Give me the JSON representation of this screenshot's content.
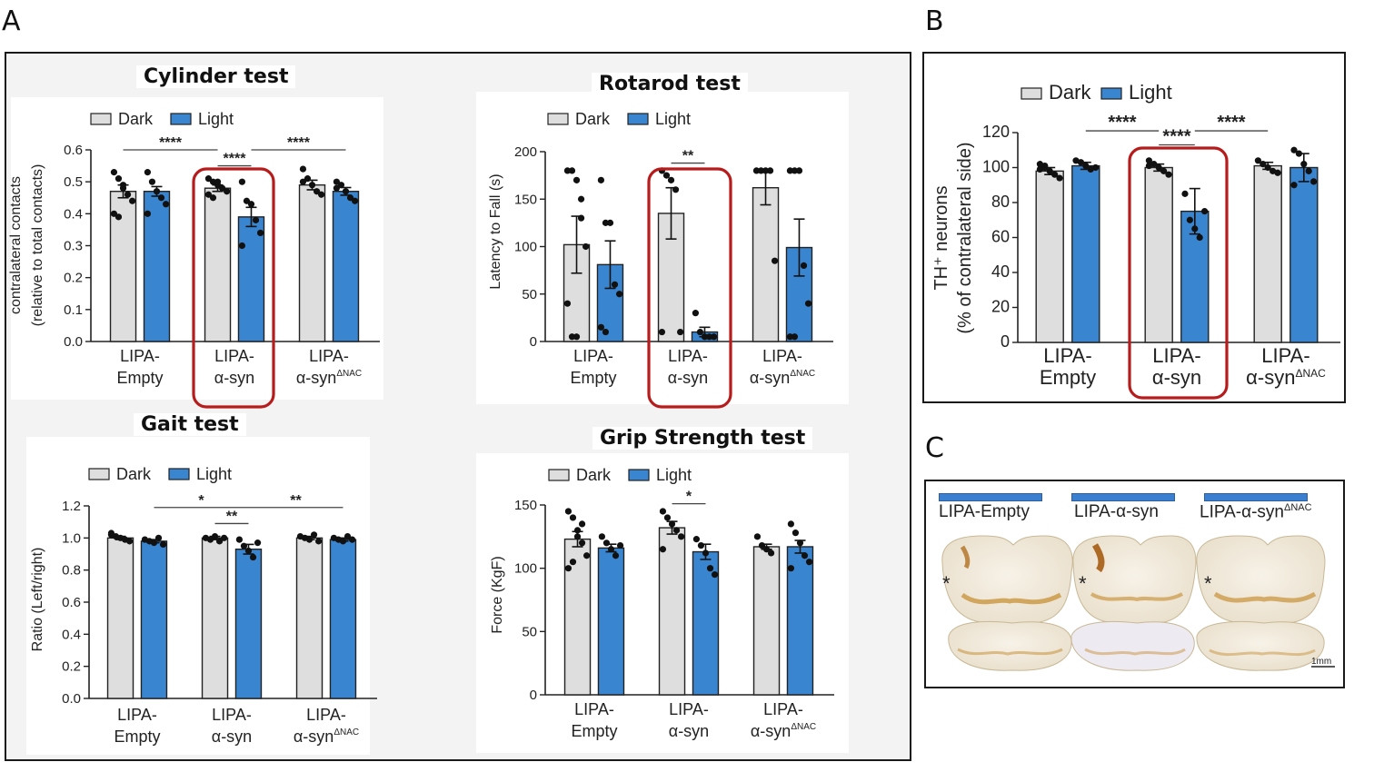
{
  "panel_letters": {
    "a": "A",
    "b": "B",
    "c": "C"
  },
  "legend": {
    "dark": "Dark",
    "light": "Light"
  },
  "colors": {
    "dark": "#dedede",
    "light": "#3a85cf",
    "box": "#b71c1c",
    "dots": "#111111"
  },
  "group_labels": [
    {
      "line1": "LIPA-",
      "line2": "Empty",
      "sup": ""
    },
    {
      "line1": "LIPA-",
      "line2": "α-syn",
      "sup": ""
    },
    {
      "line1": "LIPA-",
      "line2": "α-syn",
      "sup": "ΔNAC"
    }
  ],
  "chart_data": [
    {
      "id": "cylinder",
      "type": "bar",
      "title": "Cylinder test",
      "ylabel": "contralateral contacts",
      "ylabel2": "(relative to total contacts)",
      "ylim": [
        0,
        0.6
      ],
      "yticks": [
        "0.0",
        "0.1",
        "0.2",
        "0.3",
        "0.4",
        "0.5",
        "0.6"
      ],
      "categories": [
        "LIPA-Empty",
        "LIPA-α-syn",
        "LIPA-α-synΔNAC"
      ],
      "series": [
        {
          "name": "Dark",
          "values": [
            0.47,
            0.48,
            0.49
          ],
          "errors": [
            0.02,
            0.01,
            0.015
          ],
          "points": [
            [
              0.53,
              0.51,
              0.48,
              0.46,
              0.44,
              0.4,
              0.39,
              0.49
            ],
            [
              0.51,
              0.5,
              0.49,
              0.48,
              0.47,
              0.46,
              0.45,
              0.5
            ],
            [
              0.54,
              0.51,
              0.49,
              0.47,
              0.46,
              0.5
            ]
          ]
        },
        {
          "name": "Light",
          "values": [
            0.47,
            0.39,
            0.47
          ],
          "errors": [
            0.015,
            0.03,
            0.012
          ],
          "points": [
            [
              0.53,
              0.5,
              0.47,
              0.45,
              0.43,
              0.4
            ],
            [
              0.5,
              0.44,
              0.43,
              0.38,
              0.34,
              0.3
            ],
            [
              0.5,
              0.49,
              0.47,
              0.45,
              0.44,
              0.48
            ]
          ]
        }
      ],
      "significance": [
        {
          "label": "****",
          "from": [
            1,
            0
          ],
          "to": [
            1,
            1
          ],
          "y": 0.55
        },
        {
          "label": "****",
          "from": [
            0,
            0
          ],
          "to": [
            1,
            0
          ],
          "y": 0.6
        },
        {
          "label": "****",
          "from": [
            1,
            1
          ],
          "to": [
            2,
            1
          ],
          "y": 0.6
        }
      ],
      "highlight_group": 1
    },
    {
      "id": "rotarod",
      "type": "bar",
      "title": "Rotarod test",
      "ylabel": "Latency to Fall (s)",
      "ylabel2": "",
      "ylim": [
        0,
        200
      ],
      "yticks": [
        "0",
        "50",
        "100",
        "150",
        "200"
      ],
      "categories": [
        "LIPA-Empty",
        "LIPA-α-syn",
        "LIPA-α-synΔNAC"
      ],
      "series": [
        {
          "name": "Dark",
          "values": [
            102,
            135,
            162
          ],
          "errors": [
            30,
            27,
            18
          ],
          "points": [
            [
              180,
              180,
              170,
              150,
              100,
              40,
              5,
              5,
              130
            ],
            [
              180,
              175,
              170,
              160,
              10,
              10
            ],
            [
              180,
              180,
              180,
              180,
              85
            ]
          ]
        },
        {
          "name": "Light",
          "values": [
            81,
            10,
            99
          ],
          "errors": [
            25,
            5,
            30
          ],
          "points": [
            [
              170,
              125,
              125,
              60,
              50,
              15,
              10
            ],
            [
              30,
              10,
              5,
              5,
              5
            ],
            [
              180,
              180,
              180,
              80,
              40,
              5,
              5
            ]
          ]
        }
      ],
      "significance": [
        {
          "label": "**",
          "from": [
            1,
            0
          ],
          "to": [
            1,
            1
          ],
          "y": 188
        }
      ],
      "highlight_group": 1
    },
    {
      "id": "gait",
      "type": "bar",
      "title": "Gait test",
      "ylabel": "Ratio (Left/right)",
      "ylabel2": "",
      "ylim": [
        0,
        1.2
      ],
      "yticks": [
        "0.0",
        "0.2",
        "0.4",
        "0.6",
        "0.8",
        "1.0",
        "1.2"
      ],
      "categories": [
        "LIPA-Empty",
        "LIPA-α-syn",
        "LIPA-α-synΔNAC"
      ],
      "series": [
        {
          "name": "Dark",
          "values": [
            1.0,
            1.0,
            1.0
          ],
          "errors": [
            0.01,
            0.01,
            0.01
          ],
          "points": [
            [
              1.02,
              1.01,
              1.0,
              0.99,
              0.98,
              1.03
            ],
            [
              1.0,
              0.99,
              1.01,
              0.98,
              1.0
            ],
            [
              1.01,
              1.0,
              0.99,
              1.02,
              0.98
            ]
          ]
        },
        {
          "name": "Light",
          "values": [
            0.98,
            0.93,
            0.99
          ],
          "errors": [
            0.01,
            0.03,
            0.01
          ],
          "points": [
            [
              0.99,
              0.98,
              0.97,
              1.0,
              0.96
            ],
            [
              0.99,
              0.95,
              0.92,
              0.88,
              0.97
            ],
            [
              1.0,
              0.99,
              0.98,
              1.01,
              0.99
            ]
          ]
        }
      ],
      "significance": [
        {
          "label": "**",
          "from": [
            1,
            0
          ],
          "to": [
            1,
            1
          ],
          "y": 1.09
        },
        {
          "label": "*",
          "from": [
            0,
            1
          ],
          "to": [
            1,
            1
          ],
          "y": 1.19
        },
        {
          "label": "**",
          "from": [
            1,
            1
          ],
          "to": [
            2,
            1
          ],
          "y": 1.19
        }
      ],
      "highlight_group": -1
    },
    {
      "id": "grip",
      "type": "bar",
      "title": "Grip Strength test",
      "ylabel": "Force (KgF)",
      "ylabel2": "",
      "ylim": [
        0,
        150
      ],
      "yticks": [
        "0",
        "50",
        "100",
        "150"
      ],
      "categories": [
        "LIPA-Empty",
        "LIPA-α-syn",
        "LIPA-α-synΔNAC"
      ],
      "series": [
        {
          "name": "Dark",
          "values": [
            123,
            132,
            117
          ],
          "errors": [
            6,
            5,
            2
          ],
          "points": [
            [
              145,
              140,
              130,
              120,
              110,
              100,
              105,
              125,
              135
            ],
            [
              145,
              140,
              135,
              130,
              125,
              115
            ],
            [
              125,
              118,
              115,
              112
            ]
          ]
        },
        {
          "name": "Light",
          "values": [
            116,
            113,
            117
          ],
          "errors": [
            3,
            6,
            5
          ],
          "points": [
            [
              125,
              120,
              115,
              110,
              118
            ],
            [
              123,
              118,
              112,
              100,
              95
            ],
            [
              135,
              128,
              120,
              110,
              105,
              100
            ]
          ]
        }
      ],
      "significance": [
        {
          "label": "*",
          "from": [
            1,
            0
          ],
          "to": [
            1,
            1
          ],
          "y": 151
        }
      ],
      "highlight_group": -1
    },
    {
      "id": "th",
      "type": "bar",
      "title": "",
      "ylabel": "TH⁺ neurons",
      "ylabel2": "(% of contralateral side)",
      "ylim": [
        0,
        120
      ],
      "yticks": [
        "0",
        "20",
        "40",
        "60",
        "80",
        "100",
        "120"
      ],
      "categories": [
        "LIPA-Empty",
        "LIPA-α-syn",
        "LIPA-α-synΔNAC"
      ],
      "series": [
        {
          "name": "Dark",
          "values": [
            98,
            100,
            101
          ],
          "errors": [
            2,
            2,
            2
          ],
          "points": [
            [
              102,
              100,
              98,
              96,
              94,
              99,
              101
            ],
            [
              104,
              102,
              100,
              98,
              96,
              101
            ],
            [
              104,
              102,
              100,
              98,
              97
            ]
          ]
        },
        {
          "name": "Light",
          "values": [
            101,
            75,
            100
          ],
          "errors": [
            2,
            13,
            8
          ],
          "points": [
            [
              104,
              103,
              101,
              99,
              100
            ],
            [
              85,
              70,
              65,
              60,
              75
            ],
            [
              110,
              108,
              102,
              98,
              92,
              90
            ]
          ]
        }
      ],
      "significance": [
        {
          "label": "****",
          "from": [
            1,
            0
          ],
          "to": [
            1,
            1
          ],
          "y": 113
        },
        {
          "label": "****",
          "from": [
            0,
            1
          ],
          "to": [
            1,
            0
          ],
          "y": 121
        },
        {
          "label": "****",
          "from": [
            1,
            1
          ],
          "to": [
            2,
            0
          ],
          "y": 121
        }
      ],
      "highlight_group": 1
    }
  ],
  "brains": [
    {
      "label": "LIPA-Empty",
      "sup": "",
      "marker": "*"
    },
    {
      "label": "LIPA-α-syn",
      "sup": "",
      "marker": "*"
    },
    {
      "label": "LIPA-α-syn",
      "sup": "ΔNAC",
      "marker": "*"
    }
  ],
  "scale_bar": "1mm"
}
